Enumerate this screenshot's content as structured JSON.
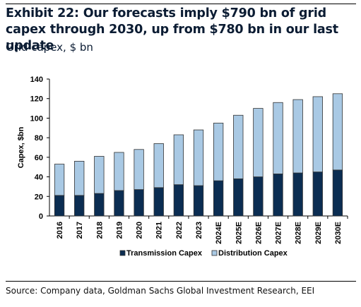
{
  "title": "Exhibit 22: Our forecasts imply $790 bn of grid capex through 2030, up from $780 bn in our last update",
  "subtitle": "Grid capex, $ bn",
  "source": "Source: Company data, Goldman Sachs Global Investment Research, EEI",
  "colors": {
    "transmission": "#0b2d52",
    "distribution": "#a9c9e4",
    "border": "#333333"
  },
  "chart_data": {
    "type": "bar",
    "stacked": true,
    "categories": [
      "2016",
      "2017",
      "2018",
      "2019",
      "2020",
      "2021",
      "2022",
      "2023",
      "2024E",
      "2025E",
      "2026E",
      "2027E",
      "2028E",
      "2029E",
      "2030E"
    ],
    "series": [
      {
        "name": "Transmission Capex",
        "values": [
          21,
          21,
          23,
          26,
          27,
          29,
          32,
          31,
          36,
          38,
          40,
          43,
          44,
          45,
          47
        ]
      },
      {
        "name": "Distribution Capex",
        "values": [
          32,
          35,
          38,
          39,
          41,
          45,
          51,
          57,
          59,
          65,
          70,
          73,
          75,
          77,
          78
        ]
      }
    ],
    "ylabel": "Capex, $bn",
    "ylim": [
      0,
      140
    ],
    "yticks": [
      0,
      20,
      40,
      60,
      80,
      100,
      120,
      140
    ],
    "legend": "bottom",
    "grid": false
  }
}
